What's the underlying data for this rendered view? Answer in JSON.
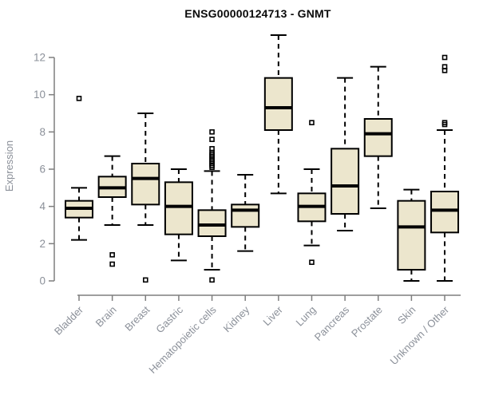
{
  "title": "ENSG00000124713 - GNMT",
  "chart_data": {
    "type": "boxplot",
    "title": "ENSG00000124713 - GNMT",
    "xlabel": "",
    "ylabel": "Expression",
    "ylim": [
      0,
      13.5
    ],
    "yticks": [
      0,
      2,
      4,
      6,
      8,
      10,
      12
    ],
    "grid": false,
    "legend": "none",
    "colors": {
      "box_fill": "#ECE6CD",
      "box_stroke": "#000000",
      "median": "#000000",
      "axis": "#7E7E7E",
      "labels": "#8B9099",
      "title": "#0A0A0A",
      "background": "#FFFFFF"
    },
    "categories": [
      "Bladder",
      "Brain",
      "Breast",
      "Gastric",
      "Hematopoietic cells",
      "Kidney",
      "Liver",
      "Lung",
      "Pancreas",
      "Prostate",
      "Skin",
      "Unknown / Other"
    ],
    "series": [
      {
        "category": "Bladder",
        "low": 2.2,
        "q1": 3.4,
        "median": 3.9,
        "q3": 4.3,
        "high": 5.0,
        "outliers": [
          9.8
        ]
      },
      {
        "category": "Brain",
        "low": 3.0,
        "q1": 4.5,
        "median": 5.0,
        "q3": 5.6,
        "high": 6.7,
        "outliers": [
          1.4,
          0.9
        ]
      },
      {
        "category": "Breast",
        "low": 3.0,
        "q1": 4.1,
        "median": 5.5,
        "q3": 6.3,
        "high": 9.0,
        "outliers": [
          0.05
        ]
      },
      {
        "category": "Gastric",
        "low": 1.1,
        "q1": 2.5,
        "median": 4.0,
        "q3": 5.3,
        "high": 6.0,
        "outliers": []
      },
      {
        "category": "Hematopoietic cells",
        "low": 0.6,
        "q1": 2.4,
        "median": 3.0,
        "q3": 3.8,
        "high": 5.9,
        "outliers": [
          8.0,
          7.6,
          7.1,
          6.9,
          6.8,
          6.7,
          6.6,
          6.5,
          6.4,
          6.3,
          6.2,
          6.1,
          0.05
        ]
      },
      {
        "category": "Kidney",
        "low": 1.6,
        "q1": 2.9,
        "median": 3.8,
        "q3": 4.1,
        "high": 5.7,
        "outliers": []
      },
      {
        "category": "Liver",
        "low": 4.7,
        "q1": 8.1,
        "median": 9.3,
        "q3": 10.9,
        "high": 13.2,
        "outliers": []
      },
      {
        "category": "Lung",
        "low": 1.9,
        "q1": 3.2,
        "median": 4.0,
        "q3": 4.7,
        "high": 6.0,
        "outliers": [
          8.5,
          1.0
        ]
      },
      {
        "category": "Pancreas",
        "low": 2.7,
        "q1": 3.6,
        "median": 5.1,
        "q3": 7.1,
        "high": 10.9,
        "outliers": []
      },
      {
        "category": "Prostate",
        "low": 3.9,
        "q1": 6.7,
        "median": 7.9,
        "q3": 8.7,
        "high": 11.5,
        "outliers": []
      },
      {
        "category": "Skin",
        "low": 0.0,
        "q1": 0.6,
        "median": 2.9,
        "q3": 4.3,
        "high": 4.9,
        "outliers": []
      },
      {
        "category": "Unknown / Other",
        "low": 0.0,
        "q1": 2.6,
        "median": 3.8,
        "q3": 4.8,
        "high": 8.1,
        "outliers": [
          12.0,
          11.5,
          11.3,
          8.5,
          8.4
        ]
      }
    ]
  }
}
